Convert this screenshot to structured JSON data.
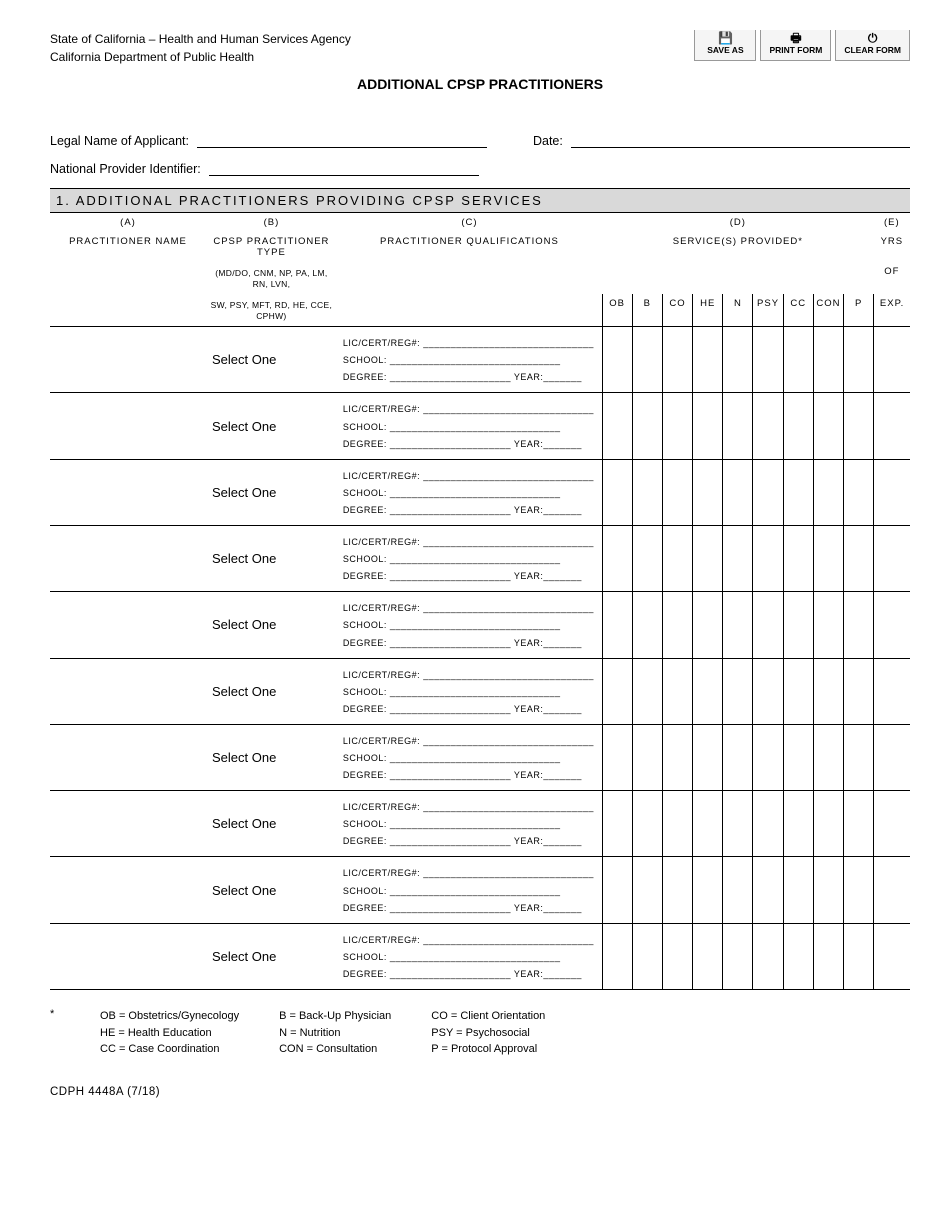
{
  "header": {
    "agency_line1": "State of California – Health and Human Services Agency",
    "agency_line2": "California Department of Public Health",
    "toolbar": {
      "save": "SAVE AS",
      "print": "PRINT FORM",
      "clear": "CLEAR FORM"
    },
    "title": "ADDITIONAL CPSP PRACTITIONERS"
  },
  "fields": {
    "legal_name_label": "Legal Name of Applicant:",
    "date_label": "Date:",
    "npi_label": "National Provider Identifier:"
  },
  "section": {
    "bar": "1. ADDITIONAL PRACTITIONERS PROVIDING CPSP SERVICES",
    "cols": {
      "a": "(A)",
      "a_label": "PRACTITIONER NAME",
      "b": "(B)",
      "b_label": "CPSP PRACTITIONER TYPE",
      "b_note1": "(MD/DO, CNM, NP, PA, LM, RN, LVN,",
      "b_note2": "SW, PSY, MFT, RD, HE, CCE, CPHW)",
      "c": "(C)",
      "c_label": "PRACTITIONER QUALIFICATIONS",
      "d": "(D)",
      "d_label": "SERVICE(S) PROVIDED*",
      "e": "(E)",
      "e_label1": "YRS",
      "e_label2": "OF",
      "e_label3": "EXP."
    },
    "services": [
      "OB",
      "B",
      "CO",
      "HE",
      "N",
      "PSY",
      "CC",
      "CON",
      "P"
    ],
    "qual_labels": {
      "lic": "LIC/CERT/REG#:",
      "school": "SCHOOL:",
      "degree": "DEGREE:",
      "year": "YEAR:"
    },
    "select_placeholder": "Select One",
    "row_count": 10
  },
  "legend": {
    "star": "*",
    "col1": [
      "OB = Obstetrics/Gynecology",
      "HE = Health Education",
      "CC = Case Coordination"
    ],
    "col2": [
      "B = Back-Up Physician",
      "N = Nutrition",
      "CON = Consultation"
    ],
    "col3": [
      "CO = Client Orientation",
      "PSY = Psychosocial",
      "P = Protocol Approval"
    ]
  },
  "footer": {
    "form_id": "CDPH 4448A (7/18)"
  },
  "style": {
    "underline_fill": "______________________",
    "underline_long": "_______________________________",
    "underline_short": "_______"
  }
}
